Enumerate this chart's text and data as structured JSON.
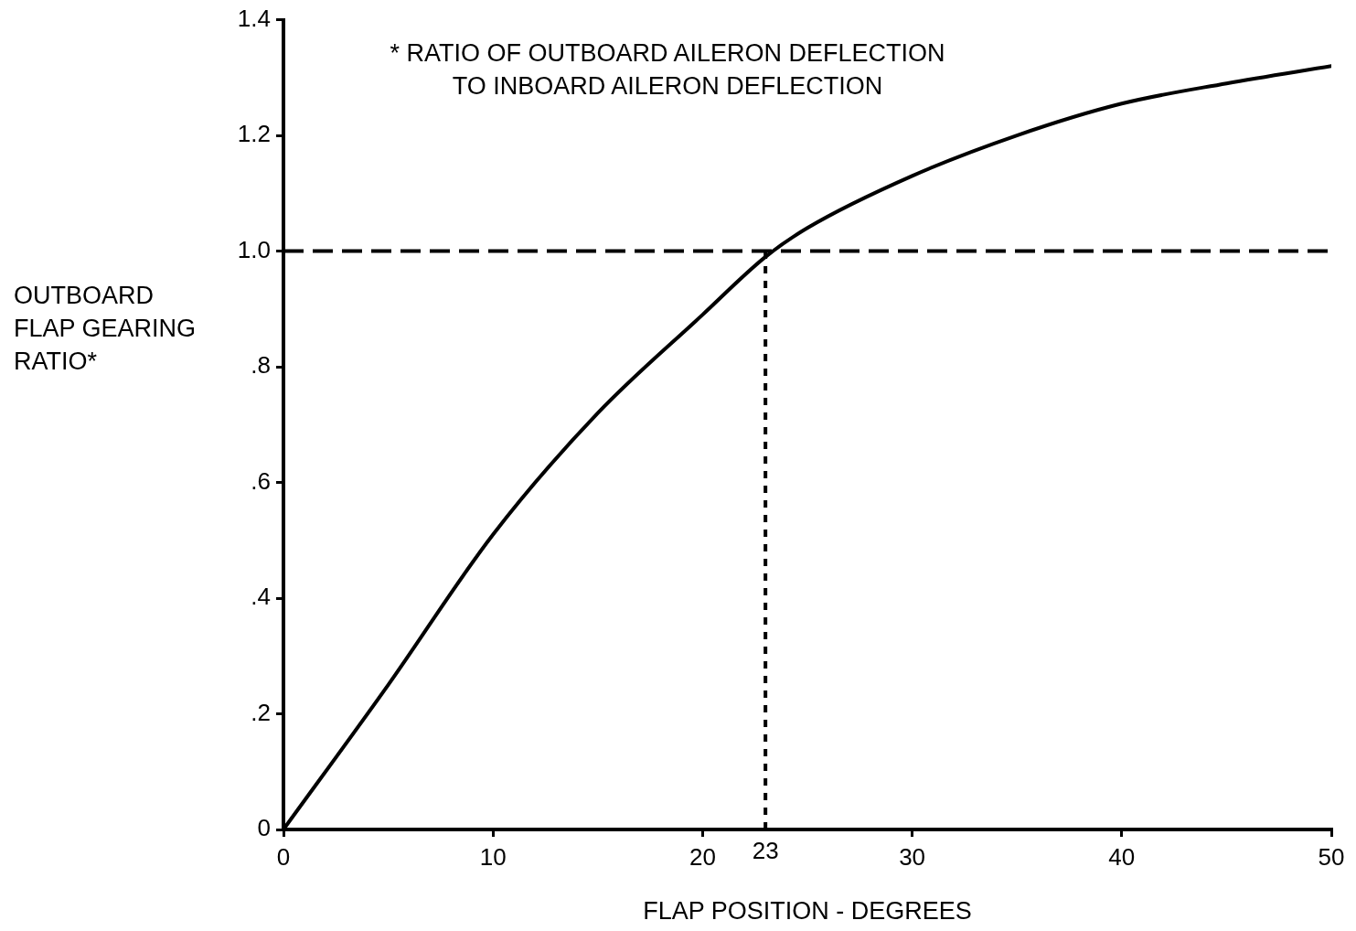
{
  "chart_data": {
    "type": "line",
    "xlabel": "FLAP POSITION - DEGREES",
    "ylabel": "OUTBOARD\nFLAP GEARING\nRATIO*",
    "annotations": [
      "* RATIO OF OUTBOARD AILERON DEFLECTION\nTO INBOARD AILERON DEFLECTION"
    ],
    "series": [
      {
        "color": "#000000",
        "x": [
          0,
          5,
          10,
          15,
          20,
          23,
          25,
          30,
          35,
          40,
          45,
          50
        ],
        "values": [
          0,
          0.25,
          0.51,
          0.72,
          0.89,
          0.99,
          1.04,
          1.13,
          1.2,
          1.255,
          1.29,
          1.32
        ]
      }
    ],
    "xlim": [
      0,
      50
    ],
    "xticks": [
      0,
      10,
      20,
      30,
      40,
      50
    ],
    "ylim": [
      0,
      1.4
    ],
    "yticks": [
      {
        "value": 0,
        "label": "0"
      },
      {
        "value": 0.2,
        "label": ".2"
      },
      {
        "value": 0.4,
        "label": ".4"
      },
      {
        "value": 0.6,
        "label": ".6"
      },
      {
        "value": 0.8,
        "label": ".8"
      },
      {
        "value": 1,
        "label": "1.0"
      },
      {
        "value": 1.2,
        "label": "1.2"
      },
      {
        "value": 1.4,
        "label": "1.4"
      }
    ],
    "ref_lines": [
      {
        "axis": "y",
        "value": 1,
        "line_style": "dashed"
      },
      {
        "axis": "x",
        "value": 23,
        "label": "23",
        "line_style": "dotted"
      }
    ],
    "marker": "none",
    "line_style": "solid",
    "legend": false
  }
}
